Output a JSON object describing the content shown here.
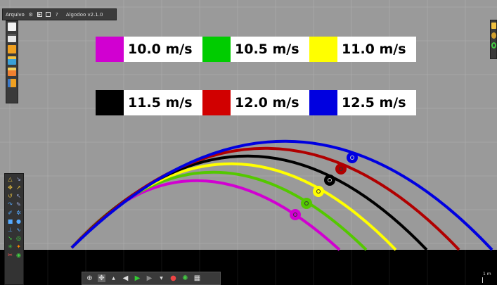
{
  "menu": {
    "file_label": "Arquivo",
    "version": "Algodoo v2.1.0"
  },
  "legend": [
    {
      "color": "#d100d1",
      "label": "10.0 m/s"
    },
    {
      "color": "#00cc00",
      "label": "10.5 m/s"
    },
    {
      "color": "#ffff00",
      "label": "11.0 m/s"
    },
    {
      "color": "#000000",
      "label": "11.5 m/s"
    },
    {
      "color": "#d10000",
      "label": "12.0 m/s"
    },
    {
      "color": "#0000e0",
      "label": "12.5 m/s"
    }
  ],
  "scale": {
    "label": "1 m"
  },
  "colors": {
    "sky": "#9a9a9a",
    "ground": "#000000",
    "grid": "#b0b0b0"
  },
  "icons": {
    "menu": [
      "gear-icon",
      "play-icon",
      "window-icon",
      "help-icon"
    ],
    "left_tools": [
      "new-scene-icon",
      "save-icon",
      "folder-icon",
      "stack-icon",
      "image-icon",
      "floppy-icon"
    ],
    "bottom": [
      "zoom-icon",
      "move-icon",
      "up-arrow-icon",
      "undo-icon",
      "play-icon",
      "redo-icon",
      "down-arrow-icon",
      "record-icon",
      "settings-icon",
      "grid-icon"
    ]
  }
}
